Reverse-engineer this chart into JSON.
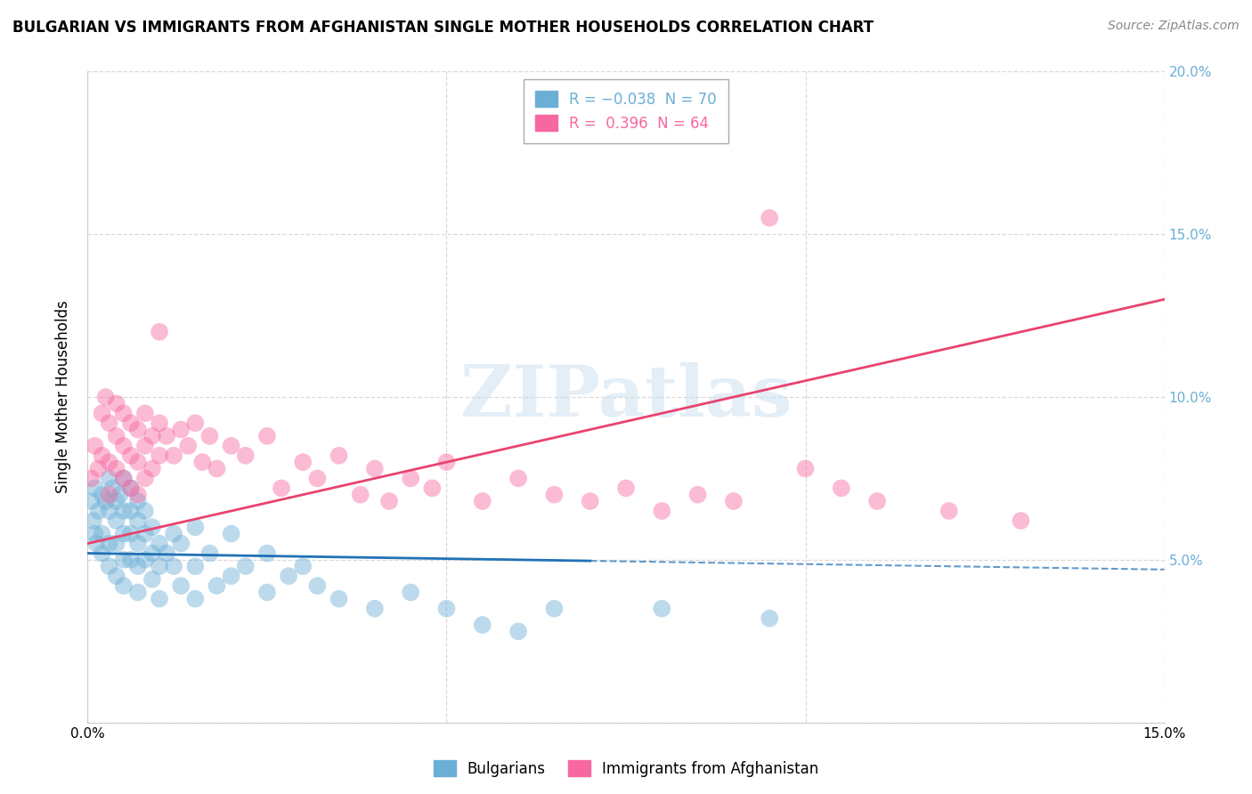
{
  "title": "BULGARIAN VS IMMIGRANTS FROM AFGHANISTAN SINGLE MOTHER HOUSEHOLDS CORRELATION CHART",
  "source": "Source: ZipAtlas.com",
  "ylabel": "Single Mother Households",
  "watermark": "ZIPatlas",
  "xlim": [
    0.0,
    0.15
  ],
  "ylim": [
    0.0,
    0.2
  ],
  "blue_color": "#6baed6",
  "pink_color": "#f768a1",
  "blue_line_color": "#2171b5",
  "pink_line_color": "#e8436e",
  "grid_color": "#d0d0d0",
  "background_color": "#ffffff",
  "blue_scatter": [
    [
      0.0005,
      0.068
    ],
    [
      0.0008,
      0.062
    ],
    [
      0.001,
      0.058
    ],
    [
      0.001,
      0.072
    ],
    [
      0.0012,
      0.055
    ],
    [
      0.0015,
      0.065
    ],
    [
      0.002,
      0.07
    ],
    [
      0.002,
      0.058
    ],
    [
      0.002,
      0.052
    ],
    [
      0.0025,
      0.068
    ],
    [
      0.003,
      0.075
    ],
    [
      0.003,
      0.065
    ],
    [
      0.003,
      0.055
    ],
    [
      0.003,
      0.048
    ],
    [
      0.0035,
      0.072
    ],
    [
      0.004,
      0.068
    ],
    [
      0.004,
      0.062
    ],
    [
      0.004,
      0.055
    ],
    [
      0.004,
      0.045
    ],
    [
      0.0045,
      0.07
    ],
    [
      0.005,
      0.075
    ],
    [
      0.005,
      0.065
    ],
    [
      0.005,
      0.058
    ],
    [
      0.005,
      0.05
    ],
    [
      0.005,
      0.042
    ],
    [
      0.006,
      0.072
    ],
    [
      0.006,
      0.065
    ],
    [
      0.006,
      0.058
    ],
    [
      0.006,
      0.05
    ],
    [
      0.007,
      0.068
    ],
    [
      0.007,
      0.062
    ],
    [
      0.007,
      0.055
    ],
    [
      0.007,
      0.048
    ],
    [
      0.007,
      0.04
    ],
    [
      0.008,
      0.065
    ],
    [
      0.008,
      0.058
    ],
    [
      0.008,
      0.05
    ],
    [
      0.009,
      0.06
    ],
    [
      0.009,
      0.052
    ],
    [
      0.009,
      0.044
    ],
    [
      0.01,
      0.055
    ],
    [
      0.01,
      0.048
    ],
    [
      0.01,
      0.038
    ],
    [
      0.011,
      0.052
    ],
    [
      0.012,
      0.058
    ],
    [
      0.012,
      0.048
    ],
    [
      0.013,
      0.055
    ],
    [
      0.013,
      0.042
    ],
    [
      0.015,
      0.06
    ],
    [
      0.015,
      0.048
    ],
    [
      0.015,
      0.038
    ],
    [
      0.017,
      0.052
    ],
    [
      0.018,
      0.042
    ],
    [
      0.02,
      0.058
    ],
    [
      0.02,
      0.045
    ],
    [
      0.022,
      0.048
    ],
    [
      0.025,
      0.052
    ],
    [
      0.025,
      0.04
    ],
    [
      0.028,
      0.045
    ],
    [
      0.03,
      0.048
    ],
    [
      0.032,
      0.042
    ],
    [
      0.035,
      0.038
    ],
    [
      0.04,
      0.035
    ],
    [
      0.045,
      0.04
    ],
    [
      0.05,
      0.035
    ],
    [
      0.055,
      0.03
    ],
    [
      0.06,
      0.028
    ],
    [
      0.065,
      0.035
    ],
    [
      0.08,
      0.035
    ],
    [
      0.095,
      0.032
    ]
  ],
  "pink_scatter": [
    [
      0.0005,
      0.075
    ],
    [
      0.001,
      0.085
    ],
    [
      0.0015,
      0.078
    ],
    [
      0.002,
      0.095
    ],
    [
      0.002,
      0.082
    ],
    [
      0.0025,
      0.1
    ],
    [
      0.003,
      0.092
    ],
    [
      0.003,
      0.08
    ],
    [
      0.003,
      0.07
    ],
    [
      0.004,
      0.098
    ],
    [
      0.004,
      0.088
    ],
    [
      0.004,
      0.078
    ],
    [
      0.005,
      0.095
    ],
    [
      0.005,
      0.085
    ],
    [
      0.005,
      0.075
    ],
    [
      0.006,
      0.092
    ],
    [
      0.006,
      0.082
    ],
    [
      0.006,
      0.072
    ],
    [
      0.007,
      0.09
    ],
    [
      0.007,
      0.08
    ],
    [
      0.007,
      0.07
    ],
    [
      0.008,
      0.095
    ],
    [
      0.008,
      0.085
    ],
    [
      0.008,
      0.075
    ],
    [
      0.009,
      0.088
    ],
    [
      0.009,
      0.078
    ],
    [
      0.01,
      0.092
    ],
    [
      0.01,
      0.082
    ],
    [
      0.01,
      0.12
    ],
    [
      0.011,
      0.088
    ],
    [
      0.012,
      0.082
    ],
    [
      0.013,
      0.09
    ],
    [
      0.014,
      0.085
    ],
    [
      0.015,
      0.092
    ],
    [
      0.016,
      0.08
    ],
    [
      0.017,
      0.088
    ],
    [
      0.018,
      0.078
    ],
    [
      0.02,
      0.085
    ],
    [
      0.022,
      0.082
    ],
    [
      0.025,
      0.088
    ],
    [
      0.027,
      0.072
    ],
    [
      0.03,
      0.08
    ],
    [
      0.032,
      0.075
    ],
    [
      0.035,
      0.082
    ],
    [
      0.038,
      0.07
    ],
    [
      0.04,
      0.078
    ],
    [
      0.042,
      0.068
    ],
    [
      0.045,
      0.075
    ],
    [
      0.048,
      0.072
    ],
    [
      0.05,
      0.08
    ],
    [
      0.055,
      0.068
    ],
    [
      0.06,
      0.075
    ],
    [
      0.065,
      0.07
    ],
    [
      0.07,
      0.068
    ],
    [
      0.075,
      0.072
    ],
    [
      0.08,
      0.065
    ],
    [
      0.085,
      0.07
    ],
    [
      0.09,
      0.068
    ],
    [
      0.095,
      0.155
    ],
    [
      0.1,
      0.078
    ],
    [
      0.105,
      0.072
    ],
    [
      0.11,
      0.068
    ],
    [
      0.12,
      0.065
    ],
    [
      0.13,
      0.062
    ]
  ],
  "blue_line": {
    "x0": 0.0,
    "x1": 0.15,
    "y0": 0.052,
    "y1": 0.047,
    "solid_end": 0.07
  },
  "pink_line": {
    "x0": 0.0,
    "x1": 0.15,
    "y0": 0.055,
    "y1": 0.13
  }
}
